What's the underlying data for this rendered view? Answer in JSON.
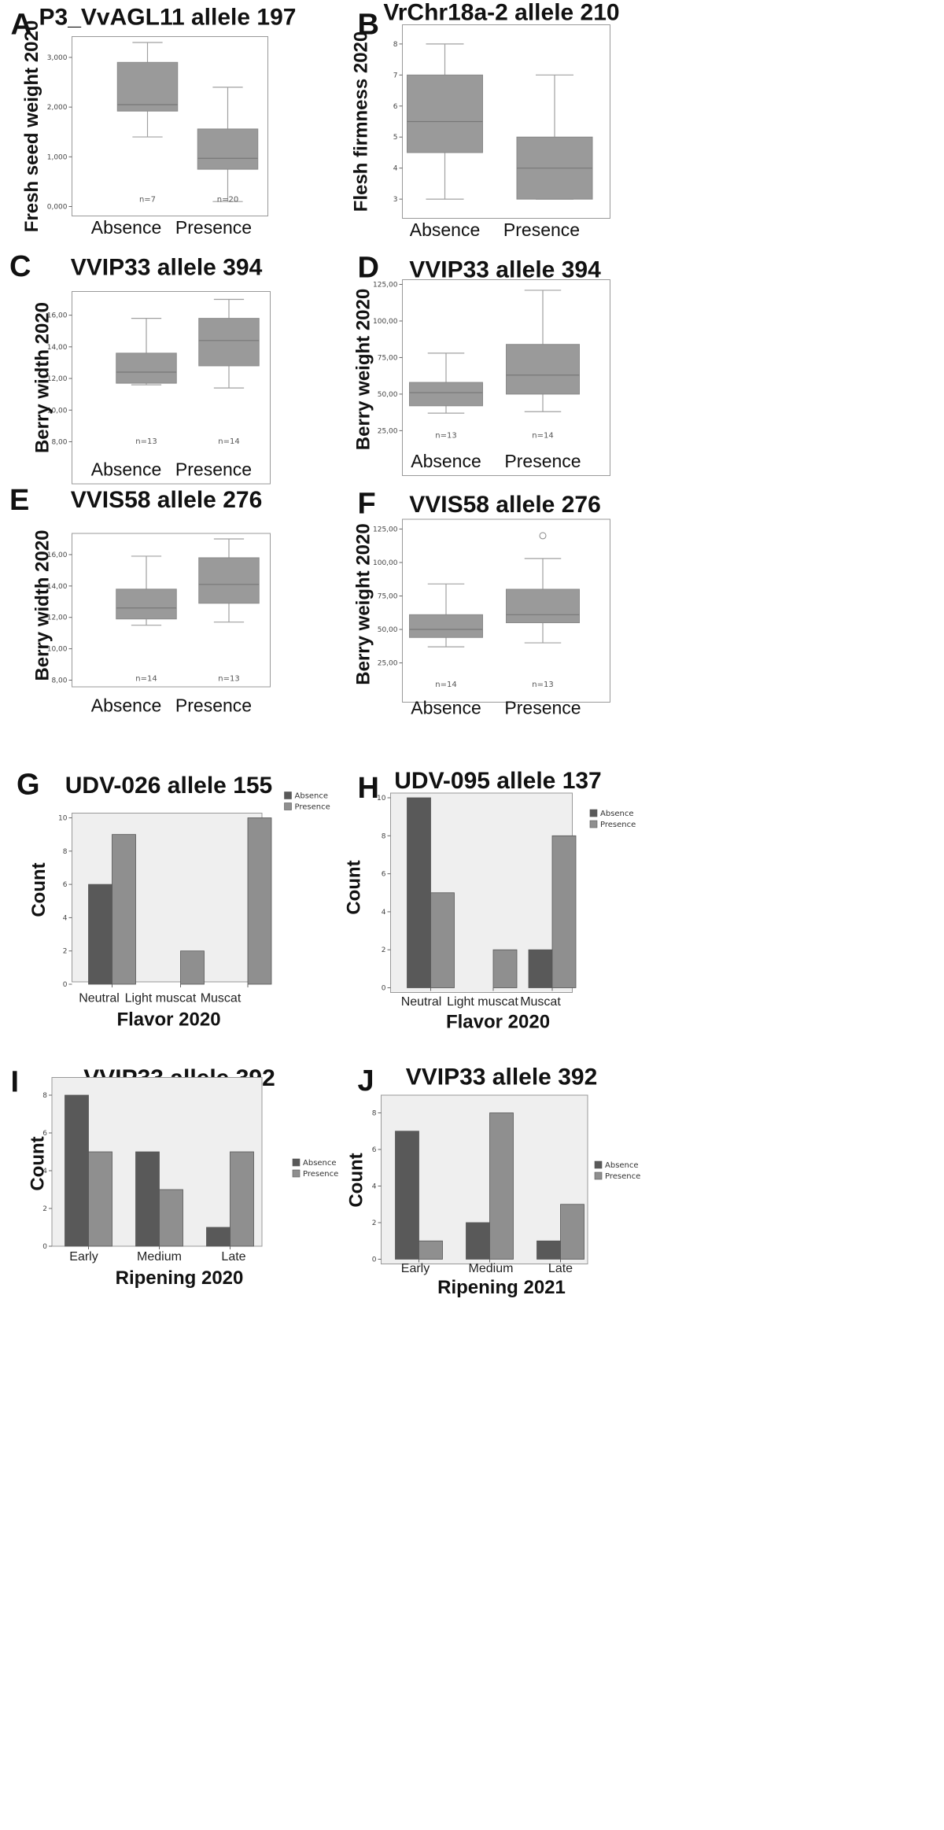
{
  "chart_data": [
    {
      "panel": "A",
      "type": "box",
      "title": "P3_VvAGL11 allele 197",
      "ylabel": "Fresh seed weight 2020",
      "ylim": [
        0,
        3.3
      ],
      "ticks": [
        0,
        1,
        2,
        3
      ],
      "tick_labels": [
        "0,000",
        "1,000",
        "2,000",
        "3,000"
      ],
      "categories": [
        "Absence",
        "Presence"
      ],
      "boxes": [
        {
          "min": 1.4,
          "q1": 1.92,
          "median": 2.05,
          "q3": 2.9,
          "max": 3.3,
          "n": "n=7"
        },
        {
          "min": 0.1,
          "q1": 0.75,
          "median": 0.97,
          "q3": 1.56,
          "max": 2.4,
          "n": "n=20"
        }
      ],
      "outliers": []
    },
    {
      "panel": "B",
      "type": "box",
      "title": "VrChr18a-2 allele 210",
      "ylabel": "Flesh firmness 2020",
      "ylim": [
        2.8,
        8.2
      ],
      "ticks": [
        3,
        4,
        5,
        6,
        7,
        8
      ],
      "tick_labels": [
        "3",
        "4",
        "5",
        "6",
        "7",
        "8"
      ],
      "categories": [
        "Absence",
        "Presence"
      ],
      "boxes": [
        {
          "min": 3,
          "q1": 4.5,
          "median": 5.5,
          "q3": 7,
          "max": 8,
          "n": ""
        },
        {
          "min": 3,
          "q1": 3,
          "median": 4,
          "q3": 5,
          "max": 7,
          "n": ""
        }
      ],
      "outliers": []
    },
    {
      "panel": "C",
      "type": "box",
      "title": "VVIP33 allele 394",
      "ylabel": "Berry width 2020",
      "ylim": [
        7.8,
        17.2
      ],
      "ticks": [
        8,
        10,
        12,
        14,
        16
      ],
      "tick_labels": [
        "8,00",
        "10,00",
        "12,00",
        "14,00",
        "16,00"
      ],
      "categories": [
        "Absence",
        "Presence"
      ],
      "boxes": [
        {
          "min": 11.6,
          "q1": 11.7,
          "median": 12.4,
          "q3": 13.6,
          "max": 15.8,
          "n": "n=13"
        },
        {
          "min": 11.4,
          "q1": 12.8,
          "median": 14.4,
          "q3": 15.8,
          "max": 17,
          "n": "n=14"
        }
      ],
      "outliers": []
    },
    {
      "panel": "D",
      "type": "box",
      "title": "VVIP33 allele 394",
      "ylabel": "Berry weight 2020",
      "ylim": [
        8,
        125
      ],
      "ticks": [
        25,
        50,
        75,
        100,
        125
      ],
      "tick_labels": [
        "25,00",
        "50,00",
        "75,00",
        "100,00",
        "125,00"
      ],
      "categories": [
        "Absence",
        "Presence"
      ],
      "boxes": [
        {
          "min": 37,
          "q1": 42,
          "median": 51,
          "q3": 58,
          "max": 78,
          "n": "n=13"
        },
        {
          "min": 38,
          "q1": 50,
          "median": 63,
          "q3": 84,
          "max": 121,
          "n": "n=14"
        }
      ],
      "outliers": []
    },
    {
      "panel": "E",
      "type": "box",
      "title": "VVIS58 allele 276",
      "ylabel": "Berry width 2020",
      "ylim": [
        7.8,
        17.2
      ],
      "ticks": [
        8,
        10,
        12,
        14,
        16
      ],
      "tick_labels": [
        "8,00",
        "10,00",
        "12,00",
        "14,00",
        "16,00"
      ],
      "categories": [
        "Absence",
        "Presence"
      ],
      "boxes": [
        {
          "min": 11.5,
          "q1": 11.9,
          "median": 12.6,
          "q3": 13.8,
          "max": 15.9,
          "n": "n=14"
        },
        {
          "min": 11.7,
          "q1": 12.9,
          "median": 14.1,
          "q3": 15.8,
          "max": 17,
          "n": "n=13"
        }
      ],
      "outliers": []
    },
    {
      "panel": "F",
      "type": "box",
      "title": "VVIS58 allele 276",
      "ylabel": "Berry weight 2020",
      "ylim": [
        8,
        127
      ],
      "ticks": [
        25,
        50,
        75,
        100,
        125
      ],
      "tick_labels": [
        "25,00",
        "50,00",
        "75,00",
        "100,00",
        "125,00"
      ],
      "categories": [
        "Absence",
        "Presence"
      ],
      "boxes": [
        {
          "min": 37,
          "q1": 44,
          "median": 50,
          "q3": 61,
          "max": 84,
          "n": "n=14"
        },
        {
          "min": 40,
          "q1": 55,
          "median": 61,
          "q3": 80,
          "max": 103,
          "n": "n=13"
        }
      ],
      "outliers": [
        {
          "group": 1,
          "value": 120
        }
      ]
    },
    {
      "panel": "G",
      "type": "bar",
      "title": "UDV-026 allele 155",
      "ylabel": "Count",
      "xlabel": "Flavor 2020",
      "ylim": [
        0,
        10
      ],
      "ticks": [
        0,
        2,
        4,
        6,
        8,
        10
      ],
      "categories": [
        "Neutral",
        "Light muscat",
        "Muscat"
      ],
      "series": [
        {
          "name": "Absence",
          "values": [
            6,
            0,
            0
          ]
        },
        {
          "name": "Presence",
          "values": [
            9,
            2,
            10
          ]
        }
      ]
    },
    {
      "panel": "H",
      "type": "bar",
      "title": "UDV-095 allele 137",
      "ylabel": "Count",
      "xlabel": "Flavor 2020",
      "ylim": [
        0,
        10
      ],
      "ticks": [
        0,
        2,
        4,
        6,
        8,
        10
      ],
      "categories": [
        "Neutral",
        "Light muscat",
        "Muscat"
      ],
      "series": [
        {
          "name": "Absence",
          "values": [
            10,
            0,
            2
          ]
        },
        {
          "name": "Presence",
          "values": [
            5,
            2,
            8
          ]
        }
      ]
    },
    {
      "panel": "I",
      "type": "bar",
      "title": "VVIP33 allele 392",
      "ylabel": "Count",
      "xlabel": "Ripening 2020",
      "ylim": [
        0,
        8
      ],
      "ticks": [
        0,
        2,
        4,
        6,
        8
      ],
      "categories": [
        "Early",
        "Medium",
        "Late"
      ],
      "series": [
        {
          "name": "Absence",
          "values": [
            8,
            5,
            1
          ]
        },
        {
          "name": "Presence",
          "values": [
            5,
            3,
            5
          ]
        }
      ]
    },
    {
      "panel": "J",
      "type": "bar",
      "title": "VVIP33 allele 392",
      "ylabel": "Count",
      "xlabel": "Ripening 2021",
      "ylim": [
        0,
        8
      ],
      "ticks": [
        0,
        2,
        4,
        6,
        8
      ],
      "categories": [
        "Early",
        "Medium",
        "Late"
      ],
      "series": [
        {
          "name": "Absence",
          "values": [
            7,
            2,
            1
          ]
        },
        {
          "name": "Presence",
          "values": [
            1,
            8,
            3
          ]
        }
      ]
    }
  ],
  "colors": {
    "box": "#9a9a9a",
    "boxEdge": "#8a8a8a",
    "absence": "#595959",
    "presence": "#8f8f8f",
    "barBg": "#efefef",
    "frame": "#999999",
    "whisker": "#a0a0a0"
  }
}
